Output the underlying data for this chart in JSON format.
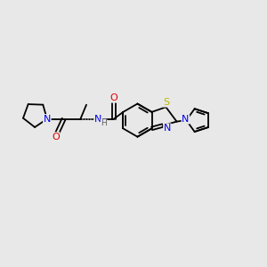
{
  "bg_color": "#e8e8e8",
  "atom_colors": {
    "N": "#0000ee",
    "O": "#dd0000",
    "S": "#bbbb00",
    "C": "#000000",
    "H": "#606060"
  },
  "bond_color": "#000000",
  "font_size": 8.0,
  "fig_size": [
    3.0,
    3.0
  ],
  "dpi": 100
}
